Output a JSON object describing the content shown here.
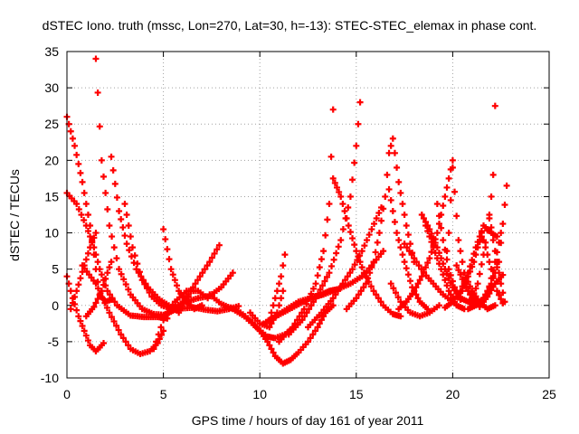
{
  "chart_data": {
    "type": "scatter",
    "title": "dSTEC Iono. truth (mssc, Lon=270, Lat=30, h=-13): STEC-STEC_elemax in phase cont.",
    "xlabel": "GPS time / hours of day 161 of year 2011",
    "ylabel": "dSTEC  / TECUs",
    "xlim": [
      0,
      25
    ],
    "ylim": [
      -10,
      35
    ],
    "xticks": [
      0,
      5,
      10,
      15,
      20,
      25
    ],
    "yticks": [
      -10,
      -5,
      0,
      5,
      10,
      15,
      20,
      25,
      30,
      35
    ],
    "grid": true,
    "marker": "plus",
    "color": "#ff0000",
    "series": [
      {
        "x": [
          0.0,
          0.3,
          0.6,
          0.9,
          1.2,
          1.5
        ],
        "y": [
          4,
          1,
          -1.5,
          -3.5,
          -5.5,
          -6.3
        ]
      },
      {
        "x": [
          1.5,
          1.7,
          1.9
        ],
        "y": [
          -6.3,
          -5.8,
          -5.2
        ]
      },
      {
        "x": [
          0.0,
          0.4,
          0.8,
          1.2,
          1.5,
          1.7,
          2.0,
          2.3
        ],
        "y": [
          26,
          22,
          17,
          11,
          5,
          1.5,
          0.5,
          0.8
        ]
      },
      {
        "x": [
          0.0,
          0.5,
          1.0,
          1.4,
          1.7,
          2.1,
          2.6,
          3.3,
          4.0,
          4.7,
          5.0,
          5.2
        ],
        "y": [
          15.5,
          14,
          11,
          8,
          5,
          2,
          0,
          -1.4,
          -1.6,
          -1.6,
          -1.7,
          -1.8
        ]
      },
      {
        "x": [
          0.2,
          0.5,
          0.9,
          1.2,
          1.5
        ],
        "y": [
          -0.5,
          2,
          5.5,
          8,
          10
        ]
      },
      {
        "x": [
          1.5,
          1.8,
          2.2,
          2.7,
          3.3,
          3.9,
          4.5,
          5.0,
          5.3,
          5.6,
          6.0
        ],
        "y": [
          34,
          20,
          11,
          5,
          1.5,
          -0.5,
          -1.2,
          -1.3,
          -1,
          -0.6,
          -0.4
        ]
      },
      {
        "x": [
          1.0,
          1.4,
          1.8,
          2.1,
          2.3
        ],
        "y": [
          -1.5,
          -0.2,
          2,
          4.5,
          6
        ]
      },
      {
        "x": [
          0.8,
          1.5,
          2.2,
          2.8,
          3.3,
          3.8,
          4.3,
          4.7,
          5.0
        ],
        "y": [
          5.5,
          3,
          -1,
          -4,
          -6,
          -6.7,
          -6.3,
          -5.2,
          -3.5
        ]
      },
      {
        "x": [
          2.3,
          2.7,
          3.1,
          3.6,
          4.2,
          4.8,
          5.4,
          6.0,
          6.6,
          7.2,
          7.8,
          8.4,
          8.9
        ],
        "y": [
          20.5,
          13,
          8.5,
          5,
          2.5,
          0.8,
          -0.2,
          -0.4,
          -0.3,
          -0.6,
          -0.8,
          -0.5,
          -0.1
        ]
      },
      {
        "x": [
          3.0,
          3.4,
          3.9,
          4.4,
          4.9,
          5.4,
          5.9,
          6.3
        ],
        "y": [
          14,
          8,
          3.5,
          1.2,
          0,
          -0.4,
          0.2,
          1.2
        ]
      },
      {
        "x": [
          4.5,
          5.0,
          5.6,
          6.2,
          6.8,
          7.3
        ],
        "y": [
          -6,
          -2,
          0.5,
          2,
          2,
          1
        ]
      },
      {
        "x": [
          5.0,
          5.4,
          5.8,
          6.2,
          6.6,
          7.0
        ],
        "y": [
          10.5,
          5,
          2,
          0.5,
          -0.5,
          0
        ]
      },
      {
        "x": [
          5.8,
          6.3,
          6.9,
          7.4,
          7.9
        ],
        "y": [
          -1,
          1.5,
          4,
          6,
          8.3
        ]
      },
      {
        "x": [
          6.2,
          6.8,
          7.4,
          8.0,
          8.6
        ],
        "y": [
          0.5,
          1,
          1.3,
          2.5,
          4.5
        ]
      },
      {
        "x": [
          7.4,
          8.0,
          8.6,
          9.2,
          9.8,
          10.4,
          10.8,
          11.3,
          11.8
        ],
        "y": [
          1.5,
          0.2,
          -0.5,
          -1.5,
          -3,
          -4.3,
          -4.5,
          -4,
          -3
        ]
      },
      {
        "x": [
          8.5,
          9.0,
          9.5,
          10.0,
          10.4,
          10.8,
          11.2,
          11.6,
          12.0,
          12.5,
          13.0,
          13.4,
          13.8
        ],
        "y": [
          -0.3,
          -1,
          -2,
          -3.5,
          -5,
          -7,
          -8,
          -7.5,
          -6.5,
          -5,
          -3,
          -1,
          0
        ]
      },
      {
        "x": [
          9.5,
          10.0,
          10.5,
          10.9,
          11.2
        ],
        "y": [
          -1,
          -2.5,
          -3,
          -1,
          2
        ]
      },
      {
        "x": [
          10.5,
          10.8,
          11.1,
          11.3
        ],
        "y": [
          -2,
          1,
          4,
          7
        ]
      },
      {
        "x": [
          10.2,
          10.8,
          11.4,
          12.0,
          12.6,
          13.2,
          13.6,
          14.0
        ],
        "y": [
          -2.5,
          -1.5,
          -0.5,
          0.5,
          1,
          1.5,
          2,
          2.2
        ]
      },
      {
        "x": [
          10.5,
          11.2,
          11.9,
          12.6,
          13.3,
          14.0,
          14.7,
          15.3,
          15.8,
          16.4
        ],
        "y": [
          -2,
          -1,
          0,
          1,
          1.5,
          2.2,
          3,
          4,
          5.5,
          7.5
        ]
      },
      {
        "x": [
          11.0,
          11.7,
          12.3,
          12.9,
          13.3,
          13.6,
          13.8
        ],
        "y": [
          -5,
          -3,
          -0.5,
          3,
          7.5,
          14,
          27
        ]
      },
      {
        "x": [
          11.5,
          12.2,
          12.9,
          13.6,
          14.2,
          14.7,
          15.0,
          15.2
        ],
        "y": [
          -4,
          -2,
          1,
          4.5,
          9,
          15,
          22,
          28
        ]
      },
      {
        "x": [
          12.5,
          13.2,
          13.8,
          14.3,
          14.8,
          15.3,
          15.8,
          16.3
        ],
        "y": [
          -3,
          -1,
          1,
          3,
          5,
          7.5,
          10.5,
          13.5
        ]
      },
      {
        "x": [
          13.8,
          14.2,
          14.6,
          15.0,
          15.4,
          15.9,
          16.4,
          16.9,
          17.3
        ],
        "y": [
          17.5,
          15,
          11,
          7.5,
          4.5,
          2,
          0,
          -1.2,
          -1.5
        ]
      },
      {
        "x": [
          14.5,
          15.0,
          15.5,
          15.9,
          16.2,
          16.5,
          16.7,
          16.9,
          17.2,
          17.6,
          18.0
        ],
        "y": [
          -0.5,
          1,
          3,
          6,
          10,
          15,
          21,
          23,
          17,
          11,
          6
        ]
      },
      {
        "x": [
          16.7,
          17.1,
          17.5,
          17.9,
          18.3,
          18.7
        ],
        "y": [
          16,
          10,
          6,
          2.5,
          0.5,
          -0.5
        ]
      },
      {
        "x": [
          16.8,
          17.3,
          17.8,
          18.3,
          18.8,
          19.3
        ],
        "y": [
          3,
          0.5,
          -1,
          -1.5,
          -1,
          0
        ]
      },
      {
        "x": [
          17.2,
          17.6,
          18.0,
          18.4,
          18.8,
          19.2,
          19.6,
          20.0
        ],
        "y": [
          -0.5,
          0.5,
          2,
          4,
          6.5,
          10,
          15,
          20
        ]
      },
      {
        "x": [
          17.5,
          18.0,
          18.5,
          19.0,
          19.5,
          20.0
        ],
        "y": [
          8.5,
          6.5,
          4.5,
          3,
          1.5,
          0.5
        ]
      },
      {
        "x": [
          18.4,
          18.8,
          19.2,
          19.6,
          20.0,
          20.4
        ],
        "y": [
          12.5,
          10.5,
          8,
          5,
          2.5,
          0.8
        ]
      },
      {
        "x": [
          18.6,
          19.0,
          19.4,
          19.8,
          20.2,
          20.6
        ],
        "y": [
          11,
          8,
          5,
          2,
          0,
          -0.5
        ]
      },
      {
        "x": [
          19.2,
          19.5,
          19.8,
          20.1,
          20.4,
          20.8,
          21.2
        ],
        "y": [
          14,
          9,
          5,
          2.5,
          1,
          0.5,
          0.2
        ]
      },
      {
        "x": [
          19.6,
          19.8,
          20.0,
          20.3,
          20.6,
          21.0,
          21.4,
          21.8,
          22.2
        ],
        "y": [
          5,
          10,
          19,
          9,
          4.5,
          2,
          0.5,
          -0.5,
          0
        ]
      },
      {
        "x": [
          19.6,
          20.0,
          20.4,
          20.8,
          21.2,
          21.6,
          22.0,
          22.3
        ],
        "y": [
          -0.3,
          0.5,
          2,
          4.5,
          8,
          11,
          10,
          9.5
        ]
      },
      {
        "x": [
          20.2,
          20.6,
          21.0,
          21.4,
          21.8,
          22.2,
          22.5
        ],
        "y": [
          5.5,
          3,
          1,
          0,
          1.5,
          6,
          10
        ]
      },
      {
        "x": [
          20.5,
          20.8,
          21.1,
          21.3,
          21.5
        ],
        "y": [
          2,
          4,
          6,
          8,
          9.5
        ]
      },
      {
        "x": [
          20.8,
          21.2,
          21.6,
          22.0,
          22.4,
          22.8
        ],
        "y": [
          -0.5,
          0,
          1,
          3,
          6,
          16.5
        ]
      },
      {
        "x": [
          21.0,
          21.3,
          21.6,
          21.9,
          22.1,
          22.2
        ],
        "y": [
          1,
          3,
          7,
          12,
          18,
          27.5
        ]
      },
      {
        "x": [
          21.4,
          21.8,
          22.2,
          22.6
        ],
        "y": [
          -0.2,
          1.2,
          3,
          4.2
        ]
      },
      {
        "x": [
          21.5,
          21.9,
          22.3,
          22.6
        ],
        "y": [
          10,
          6,
          2,
          0.3
        ]
      },
      {
        "x": [
          21.9,
          22.1,
          22.3,
          22.5,
          22.7
        ],
        "y": [
          12.5,
          9,
          6,
          3,
          0.5
        ]
      }
    ]
  }
}
